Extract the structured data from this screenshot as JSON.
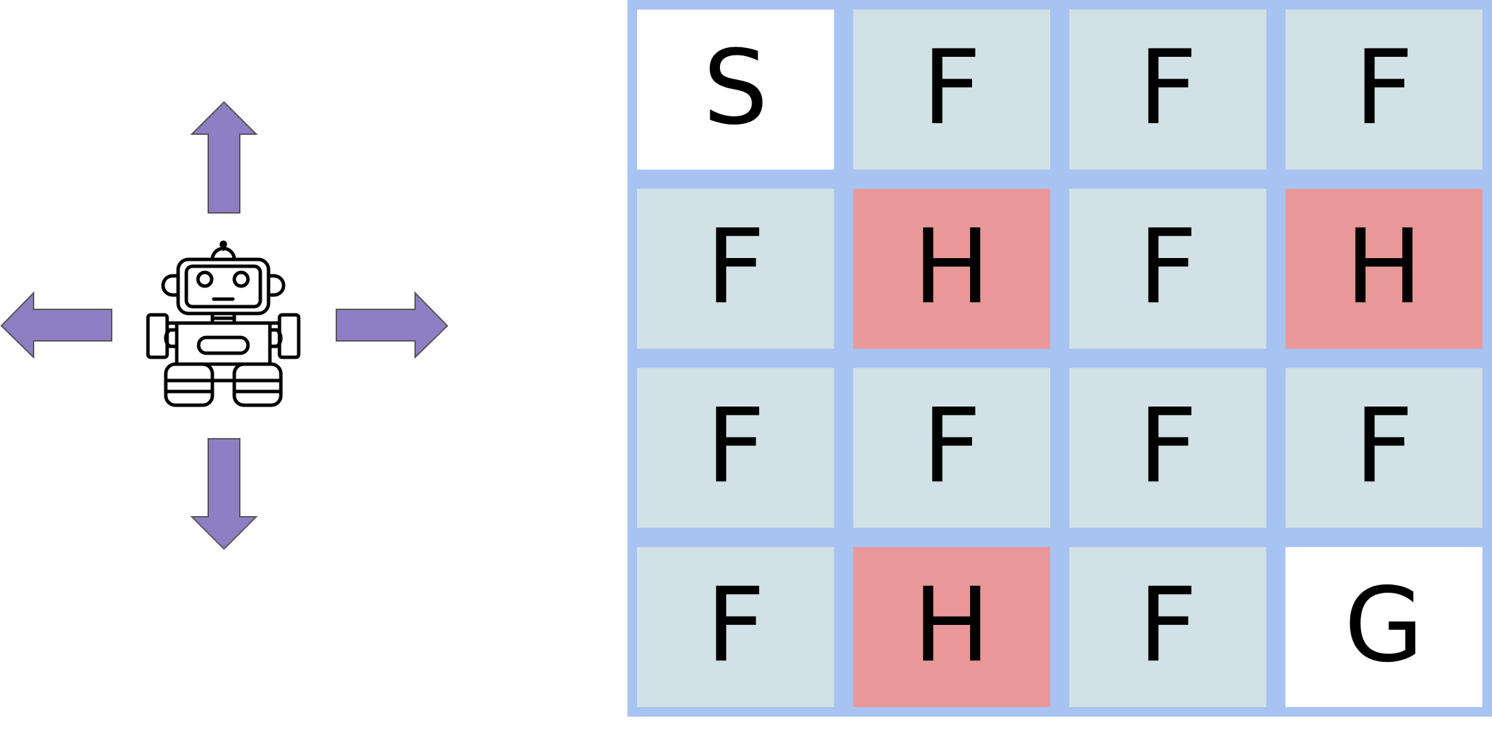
{
  "agent": {
    "icon": "robot-icon",
    "actions": [
      {
        "name": "up",
        "icon": "arrow-up-icon"
      },
      {
        "name": "down",
        "icon": "arrow-down-icon"
      },
      {
        "name": "left",
        "icon": "arrow-left-icon"
      },
      {
        "name": "right",
        "icon": "arrow-right-icon"
      }
    ],
    "arrow_color": "#8e7fc4"
  },
  "grid": {
    "rows": 4,
    "cols": 4,
    "cells": [
      [
        "S",
        "F",
        "F",
        "F"
      ],
      [
        "F",
        "H",
        "F",
        "H"
      ],
      [
        "F",
        "F",
        "F",
        "F"
      ],
      [
        "F",
        "H",
        "F",
        "G"
      ]
    ],
    "colors": {
      "S": "#ffffff",
      "F": "#d2e1e5",
      "H": "#e9989a",
      "G": "#ffffff",
      "border": "#a7c3f2"
    }
  }
}
